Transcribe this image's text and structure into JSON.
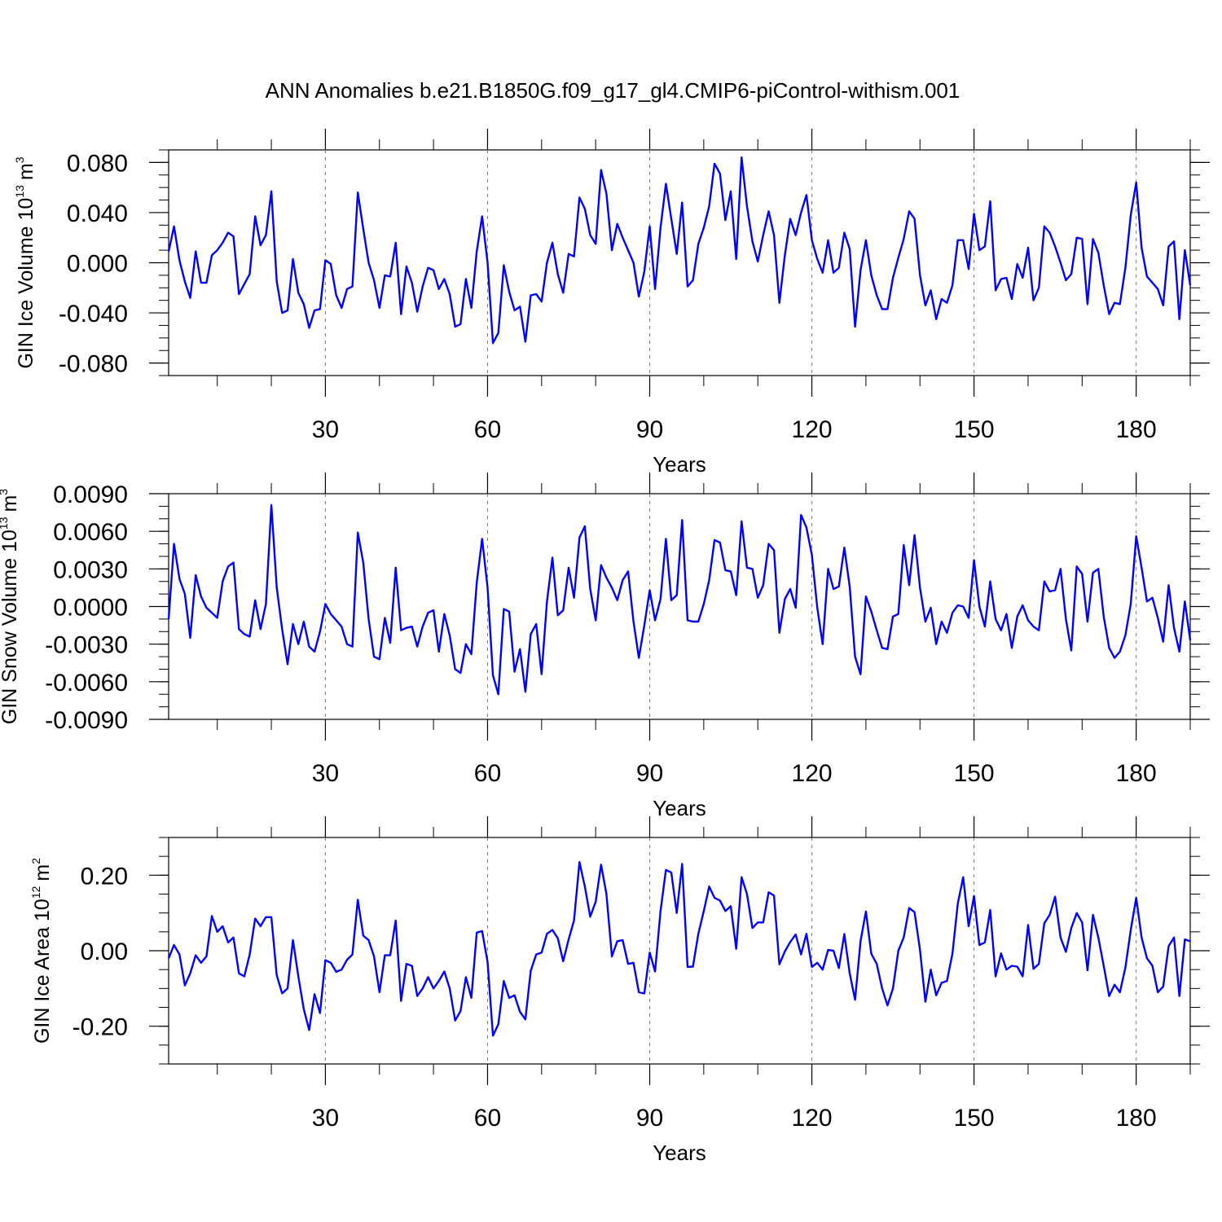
{
  "title": "ANN Anomalies b.e21.B1850G.f09_g17_gl4.CMIP6-piControl-withism.001",
  "chart_data": [
    {
      "type": "line",
      "ylabel_main": "GIN Ice Volume 10",
      "ylabel_exp": "13",
      "ylabel_unit": "m",
      "ylabel_unit_exp": "3",
      "xlabel": "Years",
      "xlim": [
        1,
        190
      ],
      "ylim": [
        -0.09,
        0.09
      ],
      "xticks": [
        30,
        60,
        90,
        120,
        150,
        180
      ],
      "xtick_labels": [
        "30",
        "60",
        "90",
        "120",
        "150",
        "180"
      ],
      "yticks": [
        -0.08,
        -0.04,
        0.0,
        0.04,
        0.08
      ],
      "ytick_labels": [
        "-0.080",
        "-0.040",
        "0.000",
        "0.040",
        "0.080"
      ],
      "y_minor_step": 0.01,
      "color": "#0000ff",
      "values": [
        0.009,
        0.029,
        0.002,
        -0.015,
        -0.028,
        0.009,
        -0.016,
        -0.016,
        0.006,
        0.01,
        0.016,
        0.024,
        0.021,
        -0.025,
        -0.017,
        -0.009,
        0.037,
        0.014,
        0.022,
        0.057,
        -0.015,
        -0.04,
        -0.038,
        0.003,
        -0.024,
        -0.033,
        -0.052,
        -0.038,
        -0.037,
        0.002,
        -0.001,
        -0.026,
        -0.036,
        -0.021,
        -0.019,
        0.056,
        0.027,
        0.0,
        -0.014,
        -0.036,
        -0.01,
        -0.011,
        0.016,
        -0.041,
        -0.003,
        -0.016,
        -0.039,
        -0.019,
        -0.004,
        -0.006,
        -0.021,
        -0.013,
        -0.025,
        -0.051,
        -0.049,
        -0.013,
        -0.036,
        0.009,
        0.037,
        0.0,
        -0.064,
        -0.056,
        -0.002,
        -0.023,
        -0.038,
        -0.035,
        -0.063,
        -0.026,
        -0.025,
        -0.031,
        0.0,
        0.016,
        -0.009,
        -0.024,
        0.007,
        0.005,
        0.052,
        0.043,
        0.022,
        0.015,
        0.074,
        0.055,
        0.01,
        0.031,
        0.02,
        0.01,
        0.0,
        -0.027,
        -0.007,
        0.029,
        -0.021,
        0.028,
        0.063,
        0.035,
        0.007,
        0.048,
        -0.019,
        -0.014,
        0.015,
        0.028,
        0.045,
        0.079,
        0.071,
        0.034,
        0.057,
        0.003,
        0.084,
        0.045,
        0.017,
        0.001,
        0.022,
        0.041,
        0.022,
        -0.032,
        0.006,
        0.035,
        0.022,
        0.04,
        0.054,
        0.018,
        0.003,
        -0.008,
        0.018,
        -0.008,
        -0.004,
        0.024,
        0.011,
        -0.051,
        -0.006,
        0.018,
        -0.01,
        -0.026,
        -0.037,
        -0.037,
        -0.012,
        0.004,
        0.019,
        0.041,
        0.035,
        -0.01,
        -0.034,
        -0.022,
        -0.045,
        -0.029,
        -0.032,
        -0.018,
        0.018,
        0.018,
        -0.005,
        0.039,
        0.01,
        0.013,
        0.049,
        -0.022,
        -0.013,
        -0.012,
        -0.029,
        -0.001,
        -0.012,
        0.012,
        -0.03,
        -0.02,
        0.029,
        0.024,
        0.013,
        0.0,
        -0.014,
        -0.009,
        0.02,
        0.019,
        -0.033,
        0.019,
        0.008,
        -0.018,
        -0.041,
        -0.032,
        -0.033,
        -0.004,
        0.038,
        0.064,
        0.012,
        -0.011,
        -0.016,
        -0.021,
        -0.034,
        0.013,
        0.017,
        -0.045,
        0.01,
        -0.018
      ]
    },
    {
      "type": "line",
      "ylabel_main": "GIN Snow Volume 10",
      "ylabel_exp": "13",
      "ylabel_unit": "m",
      "ylabel_unit_exp": "3",
      "xlabel": "Years",
      "xlim": [
        1,
        190
      ],
      "ylim": [
        -0.009,
        0.009
      ],
      "xticks": [
        30,
        60,
        90,
        120,
        150,
        180
      ],
      "xtick_labels": [
        "30",
        "60",
        "90",
        "120",
        "150",
        "180"
      ],
      "yticks": [
        -0.009,
        -0.006,
        -0.003,
        0.0,
        0.003,
        0.006,
        0.009
      ],
      "ytick_labels": [
        "-0.0090",
        "-0.0060",
        "-0.0030",
        "0.0000",
        "0.0030",
        "0.0060",
        "0.0090"
      ],
      "y_minor_step": 0.001,
      "color": "#0000ff",
      "values": [
        -0.001,
        0.005,
        0.0022,
        0.001,
        -0.0025,
        0.0025,
        0.0008,
        -0.0001,
        -0.0005,
        -0.0009,
        0.002,
        0.0032,
        0.0035,
        -0.0018,
        -0.0022,
        -0.0024,
        0.0005,
        -0.0018,
        0.0002,
        0.0081,
        0.0015,
        -0.0018,
        -0.0046,
        -0.0014,
        -0.003,
        -0.0012,
        -0.0032,
        -0.0036,
        -0.002,
        0.0002,
        -0.0006,
        -0.0011,
        -0.0016,
        -0.003,
        -0.0032,
        0.0059,
        0.0035,
        -0.001,
        -0.004,
        -0.0042,
        -0.0009,
        -0.0029,
        0.0031,
        -0.0019,
        -0.0017,
        -0.0016,
        -0.0032,
        -0.0016,
        -0.0005,
        -0.0003,
        -0.0036,
        -0.0006,
        -0.0023,
        -0.005,
        -0.0053,
        -0.003,
        -0.0038,
        0.0019,
        0.0054,
        0.0015,
        -0.0055,
        -0.007,
        -0.0002,
        -0.0004,
        -0.0052,
        -0.0034,
        -0.0068,
        -0.0022,
        -0.0014,
        -0.0054,
        0.0004,
        0.0039,
        -0.0007,
        -0.0003,
        0.0031,
        0.0007,
        0.0055,
        0.0064,
        0.0014,
        -0.0011,
        0.0033,
        0.0023,
        0.0015,
        0.0005,
        0.0021,
        0.0028,
        -0.0012,
        -0.0041,
        -0.0015,
        0.0013,
        -0.0011,
        0.0006,
        0.0054,
        0.0005,
        0.0009,
        0.0069,
        -0.0011,
        -0.0012,
        -0.0012,
        0.0002,
        0.0021,
        0.0053,
        0.0051,
        0.0029,
        0.0028,
        0.0009,
        0.0068,
        0.0031,
        0.003,
        0.0007,
        0.0017,
        0.005,
        0.0045,
        -0.0021,
        0.0006,
        0.0014,
        -0.0001,
        0.0073,
        0.0063,
        0.0041,
        -0.0001,
        -0.003,
        0.003,
        0.0014,
        0.0016,
        0.0047,
        0.0016,
        -0.004,
        -0.0054,
        0.0008,
        -0.0004,
        -0.0019,
        -0.0033,
        -0.0034,
        -0.0008,
        -0.0006,
        0.0049,
        0.0017,
        0.0057,
        0.0015,
        -0.0012,
        -0.0001,
        -0.003,
        -0.0012,
        -0.0021,
        -0.0005,
        0.0001,
        0.0,
        -0.0009,
        0.0037,
        0.0,
        -0.0016,
        0.002,
        -0.001,
        -0.0019,
        -0.0006,
        -0.0033,
        -0.0008,
        0.0001,
        -0.0011,
        -0.0016,
        -0.0019,
        0.002,
        0.0012,
        0.0013,
        0.003,
        -0.001,
        -0.0035,
        0.0032,
        0.0026,
        -0.0012,
        0.0027,
        0.003,
        -0.0008,
        -0.0033,
        -0.0041,
        -0.0036,
        -0.0023,
        0.0002,
        0.0056,
        0.0031,
        0.0004,
        0.0007,
        -0.0009,
        -0.0028,
        0.0017,
        -0.0017,
        -0.0036,
        0.0004,
        -0.0027
      ]
    },
    {
      "type": "line",
      "ylabel_main": "GIN Ice Area 10",
      "ylabel_exp": "12",
      "ylabel_unit": "m",
      "ylabel_unit_exp": "2",
      "xlabel": "Years",
      "xlim": [
        1,
        190
      ],
      "ylim": [
        -0.3,
        0.3
      ],
      "xticks": [
        30,
        60,
        90,
        120,
        150,
        180
      ],
      "xtick_labels": [
        "30",
        "60",
        "90",
        "120",
        "150",
        "180"
      ],
      "yticks": [
        -0.2,
        0.0,
        0.2
      ],
      "ytick_labels": [
        "-0.20",
        "0.00",
        "0.20"
      ],
      "y_minor_step": 0.05,
      "color": "#0000ff",
      "values": [
        -0.02,
        0.015,
        -0.01,
        -0.092,
        -0.06,
        -0.012,
        -0.032,
        -0.015,
        0.092,
        0.05,
        0.065,
        0.022,
        0.035,
        -0.06,
        -0.068,
        -0.01,
        0.085,
        0.065,
        0.089,
        0.089,
        -0.065,
        -0.113,
        -0.1,
        0.028,
        -0.068,
        -0.155,
        -0.21,
        -0.115,
        -0.165,
        -0.025,
        -0.032,
        -0.056,
        -0.05,
        -0.024,
        -0.01,
        0.135,
        0.04,
        0.028,
        -0.015,
        -0.11,
        -0.012,
        -0.012,
        0.08,
        -0.133,
        -0.035,
        -0.04,
        -0.12,
        -0.1,
        -0.07,
        -0.1,
        -0.08,
        -0.055,
        -0.1,
        -0.185,
        -0.16,
        -0.07,
        -0.125,
        0.048,
        0.052,
        -0.03,
        -0.225,
        -0.195,
        -0.08,
        -0.125,
        -0.118,
        -0.162,
        -0.182,
        -0.053,
        -0.01,
        -0.005,
        0.045,
        0.055,
        0.033,
        -0.028,
        0.03,
        0.08,
        0.235,
        0.17,
        0.09,
        0.13,
        0.228,
        0.15,
        -0.015,
        0.025,
        0.028,
        -0.035,
        -0.032,
        -0.11,
        -0.113,
        -0.005,
        -0.055,
        0.105,
        0.214,
        0.207,
        0.1,
        0.23,
        -0.043,
        -0.042,
        0.045,
        0.105,
        0.17,
        0.14,
        0.133,
        0.105,
        0.118,
        0.005,
        0.195,
        0.15,
        0.06,
        0.075,
        0.075,
        0.155,
        0.146,
        -0.036,
        -0.002,
        0.023,
        0.043,
        -0.01,
        0.045,
        -0.043,
        -0.032,
        -0.05,
        0.002,
        0.0,
        -0.046,
        0.044,
        -0.06,
        -0.13,
        0.025,
        0.104,
        -0.008,
        -0.035,
        -0.1,
        -0.145,
        -0.1,
        0.0,
        0.035,
        0.113,
        0.102,
        0.002,
        -0.135,
        -0.05,
        -0.118,
        -0.085,
        -0.08,
        -0.008,
        0.125,
        0.195,
        0.065,
        0.145,
        0.015,
        0.022,
        0.108,
        -0.068,
        -0.007,
        -0.05,
        -0.04,
        -0.042,
        -0.068,
        0.068,
        -0.048,
        -0.035,
        0.073,
        0.095,
        0.143,
        0.035,
        -0.003,
        0.06,
        0.1,
        0.075,
        -0.052,
        0.095,
        0.035,
        -0.04,
        -0.12,
        -0.09,
        -0.11,
        -0.045,
        0.055,
        0.14,
        0.035,
        -0.02,
        -0.04,
        -0.11,
        -0.095,
        0.012,
        0.035,
        -0.12,
        0.03,
        0.025
      ]
    }
  ]
}
